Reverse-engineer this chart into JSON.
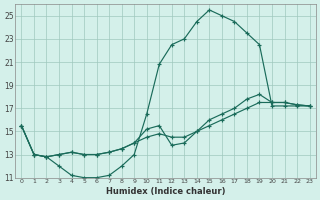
{
  "xlabel": "Humidex (Indice chaleur)",
  "bg_color": "#d4f0ea",
  "grid_color": "#a0c8be",
  "line_color": "#1a6b5a",
  "xlim": [
    -0.5,
    23.5
  ],
  "ylim": [
    11,
    26
  ],
  "xticks": [
    0,
    1,
    2,
    3,
    4,
    5,
    6,
    7,
    8,
    9,
    10,
    11,
    12,
    13,
    14,
    15,
    16,
    17,
    18,
    19,
    20,
    21,
    22,
    23
  ],
  "yticks": [
    11,
    13,
    15,
    17,
    19,
    21,
    23,
    25
  ],
  "series": [
    {
      "x": [
        0,
        1,
        2,
        3,
        4,
        5,
        6,
        7,
        8,
        9,
        10,
        11,
        12,
        13,
        14,
        15,
        16,
        17,
        18,
        19,
        20,
        21,
        22,
        23
      ],
      "y": [
        15.5,
        13.0,
        12.8,
        12.0,
        11.2,
        11.0,
        11.0,
        11.2,
        12.0,
        13.0,
        16.5,
        20.8,
        22.5,
        23.0,
        24.5,
        25.5,
        25.0,
        24.5,
        23.5,
        22.5,
        17.2,
        17.2,
        17.2,
        17.2
      ]
    },
    {
      "x": [
        0,
        1,
        2,
        3,
        4,
        5,
        6,
        7,
        8,
        9,
        10,
        11,
        12,
        13,
        14,
        15,
        16,
        17,
        18,
        19,
        20,
        21,
        22,
        23
      ],
      "y": [
        15.5,
        13.0,
        12.8,
        13.0,
        13.2,
        13.0,
        13.0,
        13.2,
        13.5,
        14.0,
        15.2,
        15.5,
        13.8,
        14.0,
        15.0,
        16.0,
        16.5,
        17.0,
        17.8,
        18.2,
        17.5,
        17.5,
        17.3,
        17.2
      ]
    },
    {
      "x": [
        0,
        1,
        2,
        3,
        4,
        5,
        6,
        7,
        8,
        9,
        10,
        11,
        12,
        13,
        14,
        15,
        16,
        17,
        18,
        19,
        20,
        21,
        22,
        23
      ],
      "y": [
        15.5,
        13.0,
        12.8,
        13.0,
        13.2,
        13.0,
        13.0,
        13.2,
        13.5,
        14.0,
        14.5,
        14.8,
        14.5,
        14.5,
        15.0,
        15.5,
        16.0,
        16.5,
        17.0,
        17.5,
        17.5,
        17.5,
        17.3,
        17.2
      ]
    }
  ]
}
